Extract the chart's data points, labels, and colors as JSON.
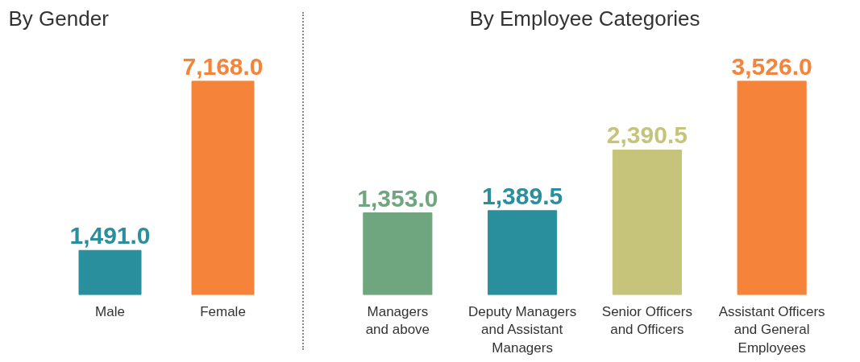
{
  "chart_data": [
    {
      "type": "bar",
      "title": "By Gender",
      "categories": [
        "Male",
        "Female"
      ],
      "values": [
        1491.0,
        7168.0
      ],
      "colors": [
        "#2a8f9c",
        "#f5843a"
      ],
      "value_labels": [
        "1,491.0",
        "7,168.0"
      ],
      "grid": false,
      "tick_labels": "x"
    },
    {
      "type": "bar",
      "title": "By Employee Categories",
      "categories": [
        "Managers\nand above",
        "Deputy Managers\nand Assistant\nManagers",
        "Senior Officers\nand Officers",
        "Assistant Officers\nand General\nEmployees"
      ],
      "values": [
        1353.0,
        1389.5,
        2390.5,
        3526.0
      ],
      "colors": [
        "#6fa57f",
        "#2a8f9c",
        "#c6c47a",
        "#f5843a"
      ],
      "value_labels": [
        "1,353.0",
        "1,389.5",
        "2,390.5",
        "3,526.0"
      ],
      "grid": false,
      "tick_labels": "x"
    }
  ]
}
